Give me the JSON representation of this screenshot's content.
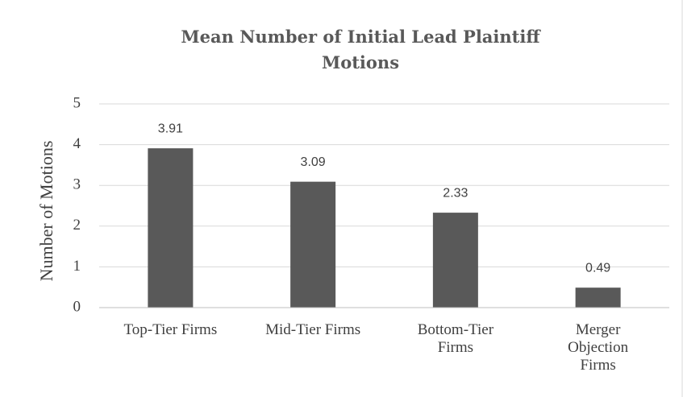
{
  "chart_data": {
    "type": "bar",
    "title": "Mean Number of Initial Lead Plaintiff Motions",
    "y_label": "Number of Motions",
    "categories": [
      "Top-Tier Firms",
      "Mid-Tier Firms",
      "Bottom-Tier Firms",
      "Merger Objection Firms"
    ],
    "values": [
      3.91,
      3.09,
      2.33,
      0.49
    ],
    "color": "#595959",
    "ylim": [
      0,
      5
    ],
    "yticks": [
      0,
      1,
      2,
      3,
      4,
      5
    ],
    "grid": true
  }
}
